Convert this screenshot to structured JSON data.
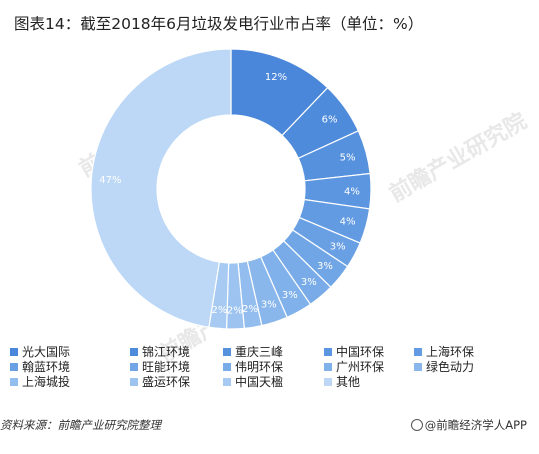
{
  "title": "图表14：截至2018年6月垃圾发电行业市占率（单位：%）",
  "watermark": "前瞻产业研究院",
  "source": "资料来源：前瞻产业研究院整理",
  "brand": "@前瞻经济学人APP",
  "chart_data": {
    "type": "pie",
    "donut": true,
    "series": [
      {
        "name": "光大国际",
        "value": 12,
        "label": "12%",
        "color": "#4a86d9"
      },
      {
        "name": "锦江环境",
        "value": 6,
        "label": "6%",
        "color": "#4f8bdb"
      },
      {
        "name": "重庆三峰",
        "value": 5,
        "label": "5%",
        "color": "#5691de"
      },
      {
        "name": "中国环保",
        "value": 4,
        "label": "4%",
        "color": "#5c96e0"
      },
      {
        "name": "上海环保",
        "value": 4,
        "label": "4%",
        "color": "#639be2"
      },
      {
        "name": "翰蓝环境",
        "value": 3,
        "label": "3%",
        "color": "#69a0e4"
      },
      {
        "name": "旺能环境",
        "value": 3,
        "label": "3%",
        "color": "#70a5e6"
      },
      {
        "name": "伟明环保",
        "value": 3,
        "label": "3%",
        "color": "#78abe8"
      },
      {
        "name": "广州环保",
        "value": 3,
        "label": "3%",
        "color": "#80b1ea"
      },
      {
        "name": "绿色动力",
        "value": 3,
        "label": "3%",
        "color": "#89b7ec"
      },
      {
        "name": "上海城投",
        "value": 2,
        "label": "2%",
        "color": "#93bdee"
      },
      {
        "name": "盛运环保",
        "value": 2,
        "label": "2%",
        "color": "#9dc4f0"
      },
      {
        "name": "中国天楹",
        "value": 2,
        "label": "2%",
        "color": "#a7caf2"
      },
      {
        "name": "其他",
        "value": 47,
        "label": "47%",
        "color": "#bcd8f6"
      }
    ]
  }
}
